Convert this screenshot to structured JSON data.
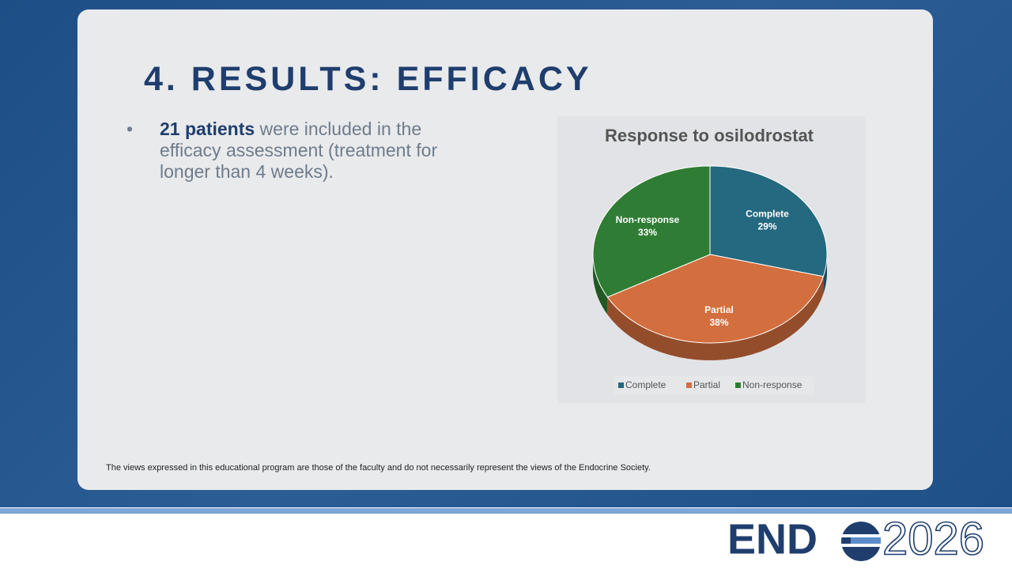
{
  "slide_title": "4. RESULTS: EFFICACY",
  "bullet": {
    "bold": "21 patients",
    "text": " were included in the efficacy assessment (treatment for longer than 4 weeks)."
  },
  "disclaimer": "The views expressed in this educational program are those of the faculty and do not necessarily represent the views of the Endocrine Society.",
  "logo": {
    "left": "END",
    "right": "2026"
  },
  "chart_data": {
    "type": "pie",
    "title": "Response to osilodrostat",
    "categories": [
      "Complete",
      "Partial",
      "Non-response"
    ],
    "values": [
      29,
      38,
      33
    ],
    "value_labels": [
      "29%",
      "38%",
      "33%"
    ],
    "colors": [
      "#24697f",
      "#d36e3e",
      "#2f7d34"
    ],
    "legend": "bottom"
  }
}
